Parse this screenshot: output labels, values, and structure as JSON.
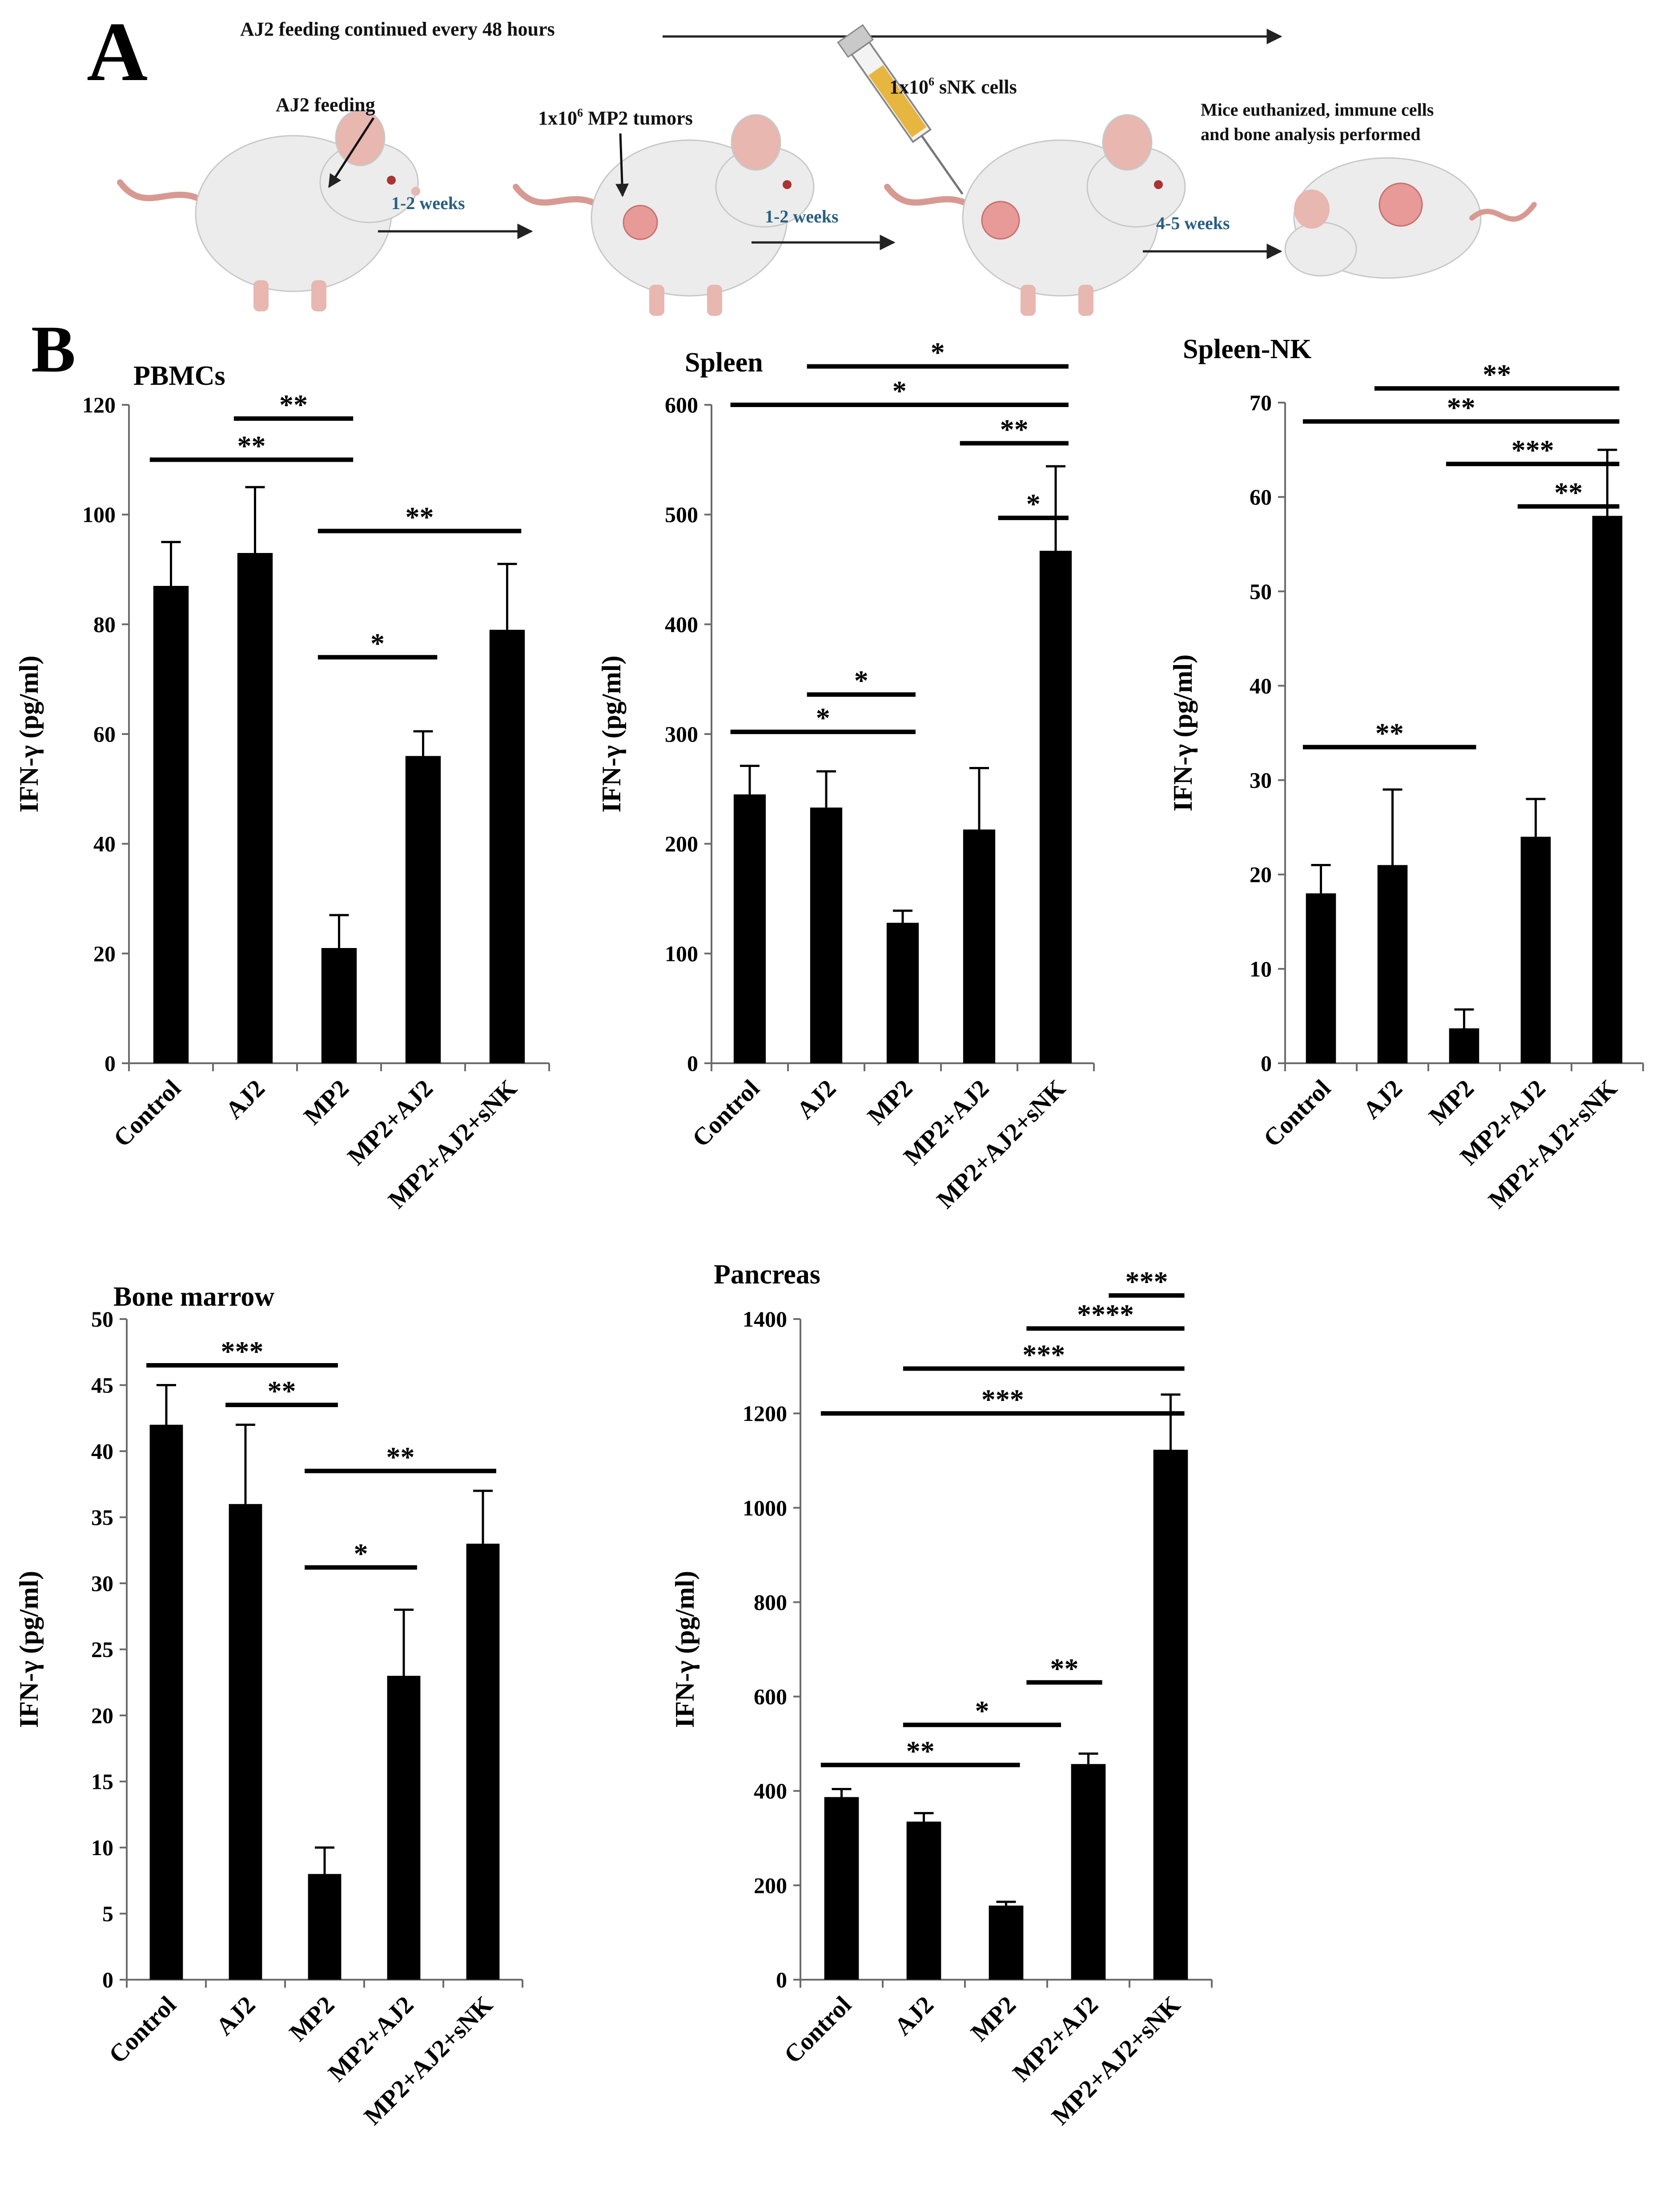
{
  "figure": {
    "panel_a_letter": "A",
    "panel_b_letter": "B",
    "colors": {
      "bar": "#000000",
      "axis": "#6b6b6b",
      "arrow_label": "#2a5f82",
      "mouse_body": "#ececec",
      "mouse_ear": "#e7b7b0",
      "mouse_tail": "#d79a92",
      "tumor": "#e79a98"
    },
    "schematic": {
      "timeline_label": "AJ2 feeding continued every 48 hours",
      "feeding_label": "AJ2 feeding",
      "tumor_label_prefix": "1x10",
      "tumor_label_exp": "6",
      "tumor_label_suffix": " MP2 tumors",
      "cells_label_prefix": "1x10",
      "cells_label_exp": "6",
      "cells_label_suffix": " sNK cells",
      "euth_label_line1": "Mice euthanized, immune cells",
      "euth_label_line2": "and bone analysis performed",
      "step1_label": "1-2 weeks",
      "step2_label": "1-2 weeks",
      "step3_label": "4-5 weeks",
      "icons": [
        "mouse-icon",
        "syringe-icon",
        "tumor-icon",
        "arrow-icon"
      ]
    }
  },
  "chart_data": [
    {
      "type": "bar",
      "title": "PBMCs",
      "ylabel": "IFN-γ (pg/ml)",
      "ylim": [
        0,
        120
      ],
      "yticks": [
        0,
        20,
        40,
        60,
        80,
        100,
        120
      ],
      "categories": [
        "Control",
        "AJ2",
        "MP2",
        "MP2+AJ2",
        "MP2+AJ2+sNK"
      ],
      "values": [
        87,
        93,
        21,
        56,
        79
      ],
      "errors": [
        8,
        12,
        6,
        4.5,
        12
      ],
      "significance": [
        {
          "from": 0,
          "to": 2,
          "y": 110,
          "label": "**"
        },
        {
          "from": 1,
          "to": 2,
          "y": 117.5,
          "label": "**"
        },
        {
          "from": 2,
          "to": 4,
          "y": 97,
          "label": "**"
        },
        {
          "from": 2,
          "to": 3,
          "y": 74,
          "label": "*"
        }
      ]
    },
    {
      "type": "bar",
      "title": "Spleen",
      "ylabel": "IFN-γ (pg/ml)",
      "ylim": [
        0,
        600
      ],
      "yticks": [
        0,
        100,
        200,
        300,
        400,
        500,
        600
      ],
      "categories": [
        "Control",
        "AJ2",
        "MP2",
        "MP2+AJ2",
        "MP2+AJ2+sNK"
      ],
      "values": [
        245,
        233,
        128,
        213,
        467
      ],
      "errors": [
        26,
        33,
        11,
        56,
        77
      ],
      "significance": [
        {
          "from": 1,
          "to": 4,
          "y": 635,
          "label": "*"
        },
        {
          "from": 0,
          "to": 4,
          "y": 600,
          "label": "*"
        },
        {
          "from": 3,
          "to": 4,
          "y": 565,
          "label": "**"
        },
        {
          "from": 3.5,
          "to": 4,
          "y": 497,
          "label": "*"
        },
        {
          "from": 1,
          "to": 2,
          "y": 336,
          "label": "*"
        },
        {
          "from": 0,
          "to": 2,
          "y": 302,
          "label": "*"
        }
      ]
    },
    {
      "type": "bar",
      "title": "Spleen-NK",
      "ylabel": "IFN-γ (pg/ml)",
      "ylim": [
        0,
        70
      ],
      "yticks": [
        0,
        10,
        20,
        30,
        40,
        50,
        60,
        70
      ],
      "categories": [
        "Control",
        "AJ2",
        "MP2",
        "MP2+AJ2",
        "MP2+AJ2+sNK"
      ],
      "values": [
        18,
        21,
        3.7,
        24,
        58
      ],
      "errors": [
        3,
        8,
        2,
        4,
        7
      ],
      "significance": [
        {
          "from": 1,
          "to": 4,
          "y": 71.5,
          "label": "**"
        },
        {
          "from": 0,
          "to": 4,
          "y": 68,
          "label": "**"
        },
        {
          "from": 2,
          "to": 4,
          "y": 63.5,
          "label": "***"
        },
        {
          "from": 3,
          "to": 4,
          "y": 59,
          "label": "**"
        },
        {
          "from": 0,
          "to": 2,
          "y": 33.5,
          "label": "**"
        }
      ]
    },
    {
      "type": "bar",
      "title": "Bone marrow",
      "ylabel": "IFN-γ (pg/ml)",
      "ylim": [
        0,
        50
      ],
      "yticks": [
        0,
        5,
        10,
        15,
        20,
        25,
        30,
        35,
        40,
        45,
        50
      ],
      "categories": [
        "Control",
        "AJ2",
        "MP2",
        "MP2+AJ2",
        "MP2+AJ2+sNK"
      ],
      "values": [
        42,
        36,
        8,
        23,
        33
      ],
      "errors": [
        3,
        6,
        2,
        5,
        4
      ],
      "significance": [
        {
          "from": 0,
          "to": 2,
          "y": 46.5,
          "label": "***"
        },
        {
          "from": 1,
          "to": 2,
          "y": 43.5,
          "label": "**"
        },
        {
          "from": 2,
          "to": 4,
          "y": 38.5,
          "label": "**"
        },
        {
          "from": 2,
          "to": 3,
          "y": 31.2,
          "label": "*"
        }
      ]
    },
    {
      "type": "bar",
      "title": "Pancreas",
      "ylabel": "IFN-γ (pg/ml)",
      "ylim": [
        0,
        1400
      ],
      "yticks": [
        0,
        200,
        400,
        600,
        800,
        1000,
        1200,
        1400
      ],
      "categories": [
        "Control",
        "AJ2",
        "MP2",
        "MP2+AJ2",
        "MP2+AJ2+sNK"
      ],
      "values": [
        387,
        335,
        157,
        457,
        1123
      ],
      "errors": [
        17,
        18,
        8,
        22,
        117
      ],
      "significance": [
        {
          "from": 3.5,
          "to": 4,
          "y": 1450,
          "label": "***"
        },
        {
          "from": 2.5,
          "to": 4,
          "y": 1380,
          "label": "****"
        },
        {
          "from": 1,
          "to": 4,
          "y": 1295,
          "label": "***"
        },
        {
          "from": 0,
          "to": 4,
          "y": 1200,
          "label": "***"
        },
        {
          "from": 2.5,
          "to": 3,
          "y": 630,
          "label": "**"
        },
        {
          "from": 1,
          "to": 2.5,
          "y": 540,
          "label": "*"
        },
        {
          "from": 0,
          "to": 2,
          "y": 455,
          "label": "**"
        }
      ]
    }
  ]
}
